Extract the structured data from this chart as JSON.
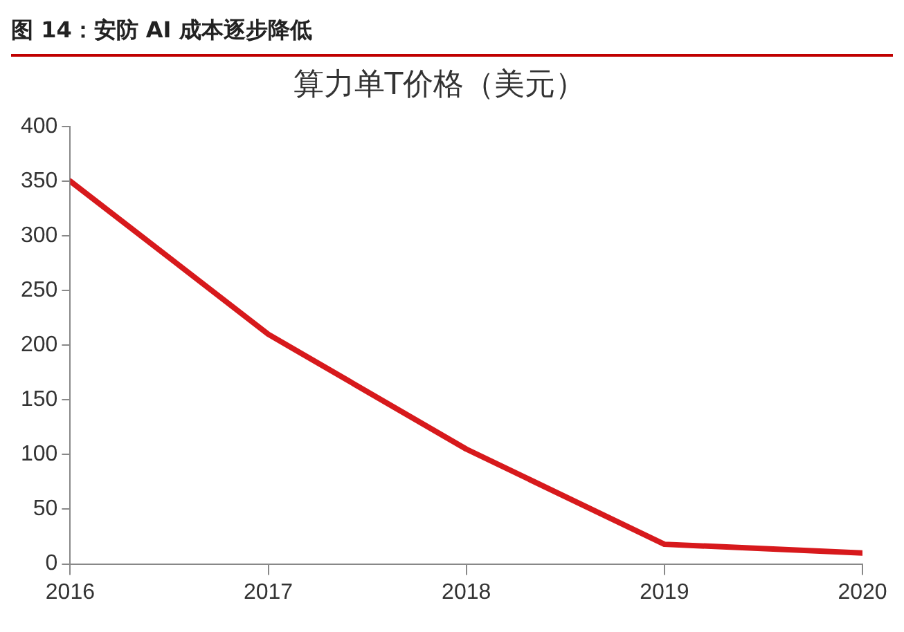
{
  "chart_data": {
    "type": "line",
    "title": "图 14：安防 AI 成本逐步降低",
    "subtitle": "算力单T价格（美元）",
    "x": [
      2016,
      2017,
      2018,
      2019,
      2020
    ],
    "series": [
      {
        "color": "#d7191c",
        "values": [
          350,
          210,
          105,
          18,
          10
        ]
      }
    ],
    "xlim": [
      2016,
      2020
    ],
    "xticks": [
      2016,
      2017,
      2018,
      2019,
      2020
    ],
    "ylim": [
      0,
      400
    ],
    "yticks": [
      0,
      50,
      100,
      150,
      200,
      250,
      300,
      350,
      400
    ],
    "grid": false,
    "legend": false,
    "marker": "none",
    "line_style": "solid"
  }
}
